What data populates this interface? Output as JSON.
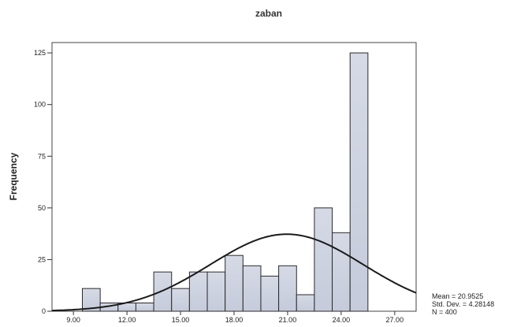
{
  "chart_data": {
    "type": "bar",
    "title": "zaban",
    "ylabel": "Frequency",
    "xlabel": "",
    "xlim": [
      7.8,
      28.2
    ],
    "ylim": [
      0,
      130
    ],
    "x_ticks": [
      "9.00",
      "12.00",
      "15.00",
      "18.00",
      "21.00",
      "24.00",
      "27.00"
    ],
    "x_tick_values": [
      9,
      12,
      15,
      18,
      21,
      24,
      27
    ],
    "y_ticks": [
      "0",
      "25",
      "50",
      "75",
      "100",
      "125"
    ],
    "y_tick_values": [
      0,
      25,
      50,
      75,
      100,
      125
    ],
    "bins": [
      {
        "x0": 9.5,
        "x1": 10.5,
        "value": 11
      },
      {
        "x0": 10.5,
        "x1": 11.5,
        "value": 4
      },
      {
        "x0": 11.5,
        "x1": 12.5,
        "value": 4
      },
      {
        "x0": 12.5,
        "x1": 13.5,
        "value": 4
      },
      {
        "x0": 13.5,
        "x1": 14.5,
        "value": 19
      },
      {
        "x0": 14.5,
        "x1": 15.5,
        "value": 11
      },
      {
        "x0": 15.5,
        "x1": 16.5,
        "value": 19
      },
      {
        "x0": 16.5,
        "x1": 17.5,
        "value": 19
      },
      {
        "x0": 17.5,
        "x1": 18.5,
        "value": 27
      },
      {
        "x0": 18.5,
        "x1": 19.5,
        "value": 22
      },
      {
        "x0": 19.5,
        "x1": 20.5,
        "value": 17
      },
      {
        "x0": 20.5,
        "x1": 21.5,
        "value": 22
      },
      {
        "x0": 21.5,
        "x1": 22.5,
        "value": 8
      },
      {
        "x0": 22.5,
        "x1": 23.5,
        "value": 50
      },
      {
        "x0": 23.5,
        "x1": 24.5,
        "value": 38
      },
      {
        "x0": 24.5,
        "x1": 25.5,
        "value": 125
      }
    ],
    "normal_curve": {
      "mean": 20.9525,
      "std_dev": 4.28148,
      "n": 400,
      "bin_width": 1
    },
    "grid": false,
    "legend": "none",
    "stats_text": [
      "Mean = 20.9525",
      "Std. Dev. = 4.28148",
      "N = 400"
    ],
    "colors": {
      "bar_fill": "#cfd4e2",
      "bar_stroke": "#2a2a2a",
      "curve": "#1a1a1a",
      "frame": "#444444"
    }
  }
}
